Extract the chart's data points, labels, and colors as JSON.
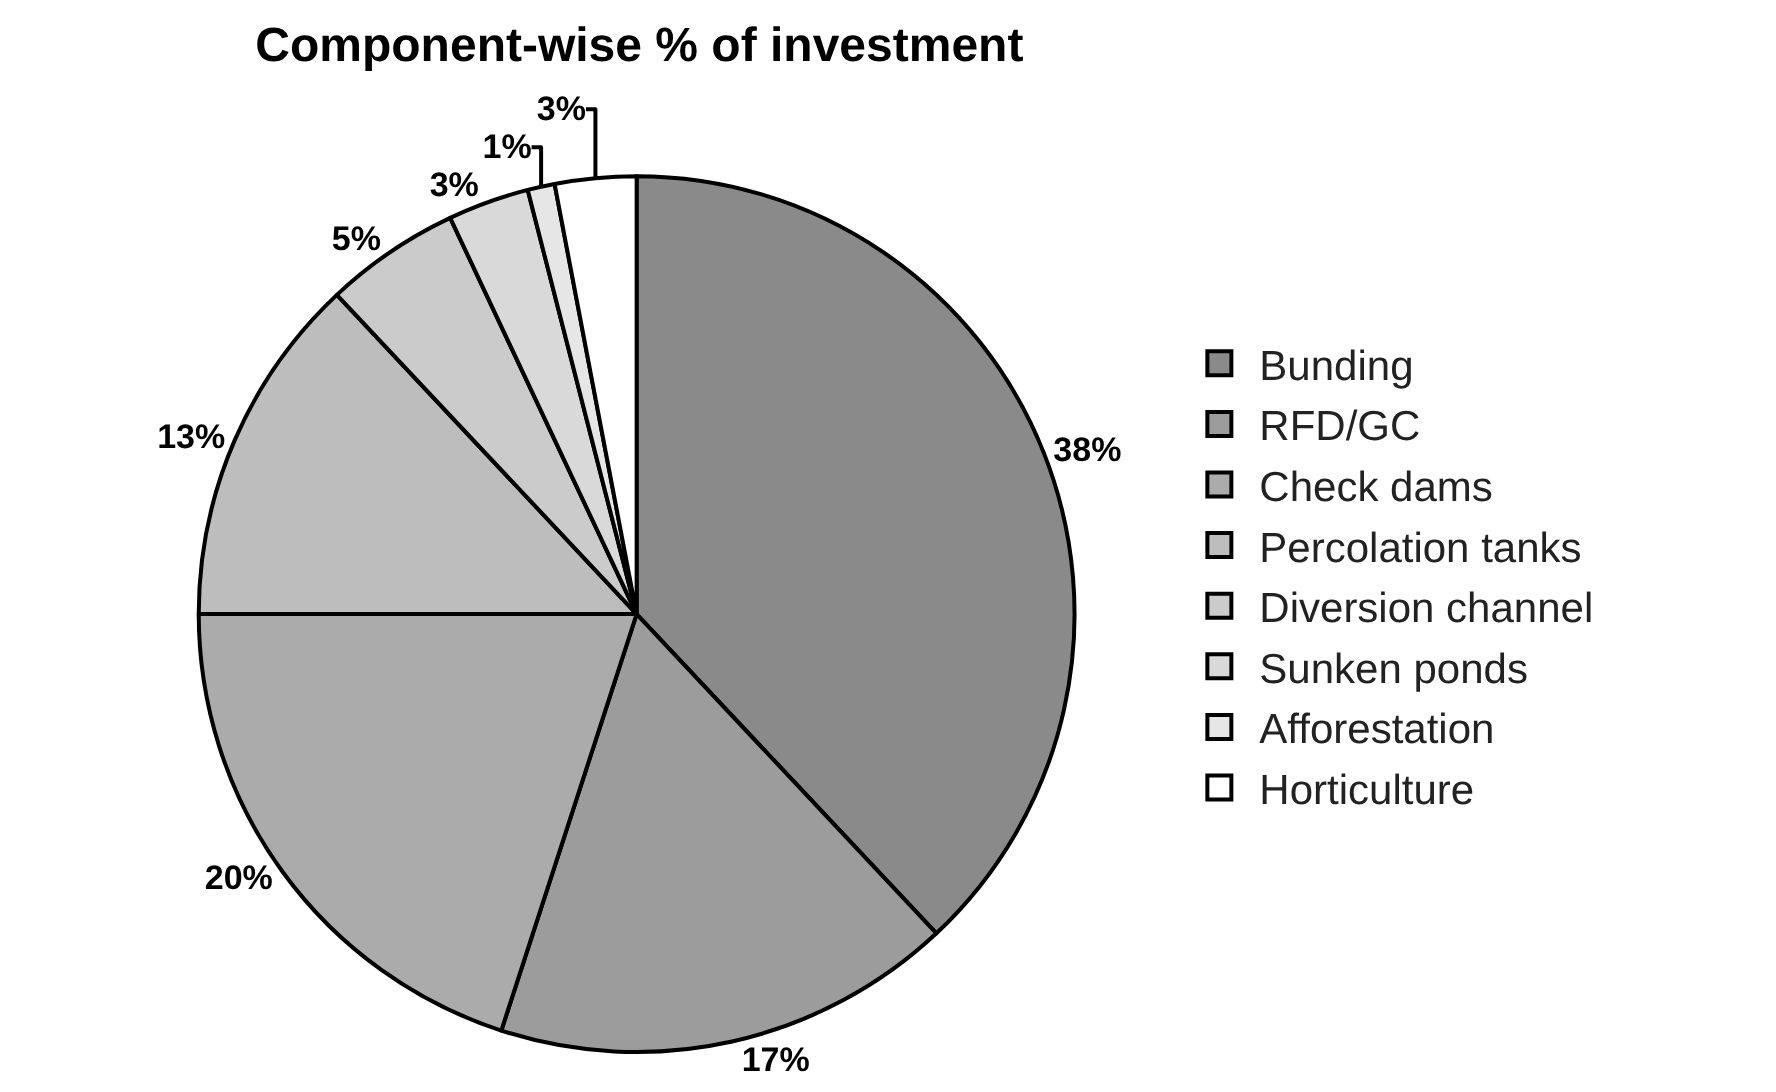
{
  "chart_data": {
    "type": "pie",
    "title": "Component-wise % of investment",
    "categories": [
      "Bunding",
      "RFD/GC",
      "Check dams",
      "Percolation tanks",
      "Diversion channel",
      "Sunken ponds",
      "Afforestation",
      "Horticulture"
    ],
    "values": [
      38,
      17,
      20,
      13,
      5,
      3,
      1,
      3
    ],
    "colors": [
      "#8a8a8a",
      "#9c9c9c",
      "#ababab",
      "#bdbdbd",
      "#cbcbcb",
      "#d9d9d9",
      "#e6e6e6",
      "#ffffff"
    ],
    "value_labels": [
      "38%",
      "17%",
      "20%",
      "13%",
      "5%",
      "3%",
      "1%",
      "3%"
    ],
    "legend": "right"
  }
}
